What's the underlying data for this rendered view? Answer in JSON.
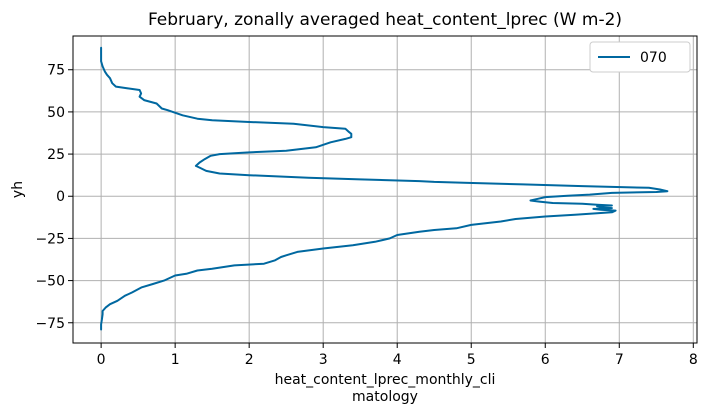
{
  "chart_data": {
    "type": "line",
    "title": "February, zonally averaged heat_content_lprec (W m-2)",
    "xlabel_lines": [
      "heat_content_lprec_monthly_cli",
      "matology"
    ],
    "ylabel": "yh",
    "xlim": [
      -0.38,
      8.05
    ],
    "ylim": [
      -87,
      95
    ],
    "xticks": [
      0,
      1,
      2,
      3,
      4,
      5,
      6,
      7,
      8
    ],
    "xtick_labels": [
      "0",
      "1",
      "2",
      "3",
      "4",
      "5",
      "6",
      "7",
      "8"
    ],
    "yticks": [
      -75,
      -50,
      -25,
      0,
      25,
      50,
      75
    ],
    "ytick_labels": [
      "−75",
      "−50",
      "−25",
      "0",
      "25",
      "50",
      "75"
    ],
    "grid": true,
    "legend_position": "top-right",
    "series": [
      {
        "name": "070",
        "color": "#0068a0",
        "points": [
          [
            0.0,
            88
          ],
          [
            0.0,
            84
          ],
          [
            0.0,
            80
          ],
          [
            0.02,
            77
          ],
          [
            0.05,
            74
          ],
          [
            0.08,
            72
          ],
          [
            0.12,
            70
          ],
          [
            0.15,
            67
          ],
          [
            0.2,
            65
          ],
          [
            0.35,
            64
          ],
          [
            0.52,
            63
          ],
          [
            0.54,
            61
          ],
          [
            0.52,
            59
          ],
          [
            0.58,
            57
          ],
          [
            0.75,
            55
          ],
          [
            0.82,
            52
          ],
          [
            0.9,
            51
          ],
          [
            1.1,
            48
          ],
          [
            1.3,
            46
          ],
          [
            1.5,
            45
          ],
          [
            2.0,
            44
          ],
          [
            2.6,
            43
          ],
          [
            3.0,
            41
          ],
          [
            3.3,
            40
          ],
          [
            3.35,
            38
          ],
          [
            3.38,
            37
          ],
          [
            3.38,
            35
          ],
          [
            3.3,
            34
          ],
          [
            3.1,
            32
          ],
          [
            2.9,
            29
          ],
          [
            2.5,
            27
          ],
          [
            2.0,
            26
          ],
          [
            1.6,
            25
          ],
          [
            1.48,
            24
          ],
          [
            1.4,
            22
          ],
          [
            1.33,
            20
          ],
          [
            1.28,
            18
          ],
          [
            1.33,
            17
          ],
          [
            1.42,
            15
          ],
          [
            1.6,
            13.5
          ],
          [
            2.0,
            12.5
          ],
          [
            2.8,
            11
          ],
          [
            3.5,
            10
          ],
          [
            4.3,
            9
          ],
          [
            4.5,
            8.5
          ],
          [
            4.9,
            8
          ],
          [
            5.7,
            7
          ],
          [
            6.5,
            6
          ],
          [
            7.4,
            5
          ],
          [
            7.55,
            4
          ],
          [
            7.65,
            3
          ],
          [
            7.5,
            2.5
          ],
          [
            6.9,
            2
          ],
          [
            6.6,
            1
          ],
          [
            6.3,
            0.3
          ],
          [
            6.0,
            -0.5
          ],
          [
            5.9,
            -1.5
          ],
          [
            5.8,
            -2.5
          ],
          [
            5.92,
            -3.2
          ],
          [
            6.1,
            -4
          ],
          [
            6.5,
            -4.5
          ],
          [
            6.7,
            -5
          ],
          [
            6.9,
            -5.5
          ],
          [
            6.7,
            -6
          ],
          [
            6.75,
            -6.5
          ],
          [
            6.9,
            -7
          ],
          [
            6.65,
            -7.5
          ],
          [
            6.75,
            -8
          ],
          [
            6.95,
            -8.5
          ],
          [
            6.9,
            -9.5
          ],
          [
            6.4,
            -11
          ],
          [
            6.0,
            -12
          ],
          [
            5.6,
            -13.5
          ],
          [
            5.4,
            -15
          ],
          [
            5.0,
            -17
          ],
          [
            4.8,
            -19
          ],
          [
            4.5,
            -20
          ],
          [
            4.3,
            -21
          ],
          [
            4.0,
            -23
          ],
          [
            3.9,
            -25
          ],
          [
            3.7,
            -27
          ],
          [
            3.4,
            -29
          ],
          [
            3.0,
            -31
          ],
          [
            2.65,
            -33
          ],
          [
            2.5,
            -35
          ],
          [
            2.43,
            -36
          ],
          [
            2.35,
            -38
          ],
          [
            2.2,
            -40
          ],
          [
            1.8,
            -41
          ],
          [
            1.5,
            -43
          ],
          [
            1.3,
            -44
          ],
          [
            1.15,
            -46
          ],
          [
            1.0,
            -47
          ],
          [
            0.85,
            -50
          ],
          [
            0.7,
            -52
          ],
          [
            0.55,
            -54
          ],
          [
            0.42,
            -57
          ],
          [
            0.32,
            -59
          ],
          [
            0.22,
            -62
          ],
          [
            0.12,
            -64
          ],
          [
            0.06,
            -66
          ],
          [
            0.02,
            -68
          ],
          [
            0.02,
            -70
          ],
          [
            0.01,
            -73
          ],
          [
            0.0,
            -76
          ],
          [
            0.0,
            -79
          ]
        ]
      }
    ]
  }
}
